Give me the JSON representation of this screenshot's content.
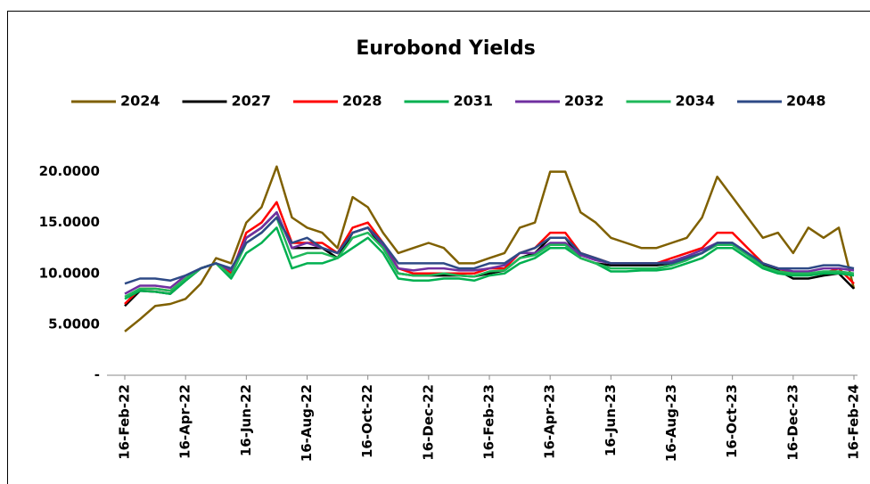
{
  "chart_data": {
    "type": "line",
    "title": "Eurobond Yields",
    "categories": [
      "16-Feb-22",
      null,
      null,
      null,
      "16-Apr-22",
      null,
      null,
      null,
      "16-Jun-22",
      null,
      null,
      null,
      "16-Aug-22",
      null,
      null,
      null,
      "16-Oct-22",
      null,
      null,
      null,
      "16-Dec-22",
      null,
      null,
      null,
      "16-Feb-23",
      null,
      null,
      null,
      "16-Apr-23",
      null,
      null,
      null,
      "16-Jun-23",
      null,
      null,
      null,
      "16-Aug-23",
      null,
      null,
      null,
      "16-Oct-23",
      null,
      null,
      null,
      "16-Dec-23",
      null,
      null,
      null,
      "16-Feb-24"
    ],
    "series": [
      {
        "name": "2024",
        "color": "#7f6000",
        "values": [
          4.3,
          5.5,
          6.8,
          7,
          7.5,
          9,
          11.5,
          11,
          15,
          16.5,
          20.5,
          15.5,
          14.5,
          14,
          12.5,
          17.5,
          16.5,
          14,
          12,
          12.5,
          13,
          12.5,
          11,
          11,
          11.5,
          12,
          14.5,
          15,
          20,
          20,
          16,
          15,
          13.5,
          13,
          12.5,
          12.5,
          13,
          13.5,
          15.5,
          19.5,
          17.5,
          15.5,
          13.5,
          14,
          12,
          14.5,
          13.5,
          14.5,
          8.5
        ]
      },
      {
        "name": "2027",
        "color": "#000000",
        "values": [
          6.8,
          8.3,
          8.2,
          8,
          9.3,
          10.5,
          11,
          10,
          13.5,
          14.5,
          16,
          12.5,
          12.5,
          12.5,
          11.5,
          14,
          14.5,
          12.5,
          10,
          9.8,
          9.8,
          9.8,
          9.8,
          9.7,
          10,
          10.3,
          11.5,
          12,
          13.5,
          13.5,
          11.5,
          11,
          10.8,
          10.8,
          10.8,
          10.8,
          11,
          11.5,
          12,
          13,
          13,
          12,
          10.8,
          10.3,
          9.5,
          9.5,
          9.8,
          10,
          8.5
        ]
      },
      {
        "name": "2028",
        "color": "#ff0000",
        "values": [
          7,
          8.5,
          8.5,
          8.3,
          9.5,
          10.5,
          11,
          10,
          14,
          15,
          17,
          13,
          13,
          13,
          12,
          14.5,
          15,
          13,
          10.5,
          10,
          10,
          10,
          10,
          10,
          10.5,
          10.5,
          12,
          12.5,
          14,
          14,
          12,
          11.5,
          11,
          11,
          11,
          11,
          11.5,
          12,
          12.5,
          14,
          14,
          12.5,
          11,
          10.5,
          10,
          10,
          10,
          10.5,
          9
        ]
      },
      {
        "name": "2031",
        "color": "#00b050",
        "values": [
          7.5,
          8.3,
          8.2,
          8,
          9.3,
          10.5,
          11,
          9.5,
          12,
          13,
          14.5,
          10.5,
          11,
          11,
          11.5,
          12.5,
          13.5,
          12,
          9.5,
          9.3,
          9.3,
          9.5,
          9.5,
          9.3,
          9.8,
          10,
          11,
          11.5,
          12.5,
          12.5,
          11.5,
          11,
          10.2,
          10.2,
          10.3,
          10.3,
          10.5,
          11,
          11.5,
          12.5,
          12.5,
          11.5,
          10.5,
          10,
          9.8,
          9.8,
          10,
          10,
          9.8
        ]
      },
      {
        "name": "2032",
        "color": "#7030a0",
        "values": [
          8,
          8.8,
          8.8,
          8.6,
          9.8,
          10.5,
          11,
          10.3,
          13.5,
          14.5,
          16,
          12.5,
          13,
          12.5,
          12,
          14,
          14.5,
          12.8,
          10.5,
          10.3,
          10.5,
          10.5,
          10.3,
          10.3,
          10.5,
          10.8,
          12,
          12,
          13,
          13,
          11.8,
          11.3,
          11,
          11,
          11,
          11,
          11.2,
          11.7,
          12.3,
          13,
          13,
          12,
          11,
          10.5,
          10.2,
          10.2,
          10.5,
          10.5,
          10.3
        ]
      },
      {
        "name": "2034",
        "color": "#1fb85a",
        "values": [
          7.7,
          8.5,
          8.5,
          8.3,
          9.5,
          10.5,
          11,
          9.8,
          13,
          14,
          15.5,
          11.5,
          12,
          12,
          11.5,
          13.5,
          14,
          12.5,
          10,
          9.8,
          9.8,
          10,
          9.8,
          9.7,
          10.2,
          10.3,
          11.5,
          11.8,
          12.8,
          12.8,
          11.5,
          11,
          10.5,
          10.5,
          10.5,
          10.5,
          10.8,
          11.3,
          12,
          12.8,
          12.8,
          11.8,
          10.7,
          10.2,
          10,
          10,
          10.2,
          10.2,
          10
        ]
      },
      {
        "name": "2048",
        "color": "#2e4a86",
        "values": [
          9,
          9.5,
          9.5,
          9.3,
          9.8,
          10.5,
          11,
          10.5,
          13,
          14,
          15.5,
          13,
          13.5,
          12.5,
          12,
          14,
          14.5,
          13,
          11,
          11,
          11,
          11,
          10.5,
          10.5,
          11,
          11,
          12,
          12.5,
          13.5,
          13.5,
          12,
          11.5,
          11,
          11,
          11,
          11,
          11,
          11.5,
          12,
          13,
          13,
          12,
          11,
          10.5,
          10.5,
          10.5,
          10.8,
          10.8,
          10.5
        ]
      }
    ],
    "ylim": [
      0,
      22.5
    ],
    "yticks": [
      {
        "value": 0,
        "label": "-"
      },
      {
        "value": 5,
        "label": "5.0000"
      },
      {
        "value": 10,
        "label": "10.0000"
      },
      {
        "value": 15,
        "label": "15.0000"
      },
      {
        "value": 20,
        "label": "20.0000"
      }
    ],
    "legend": "top"
  }
}
